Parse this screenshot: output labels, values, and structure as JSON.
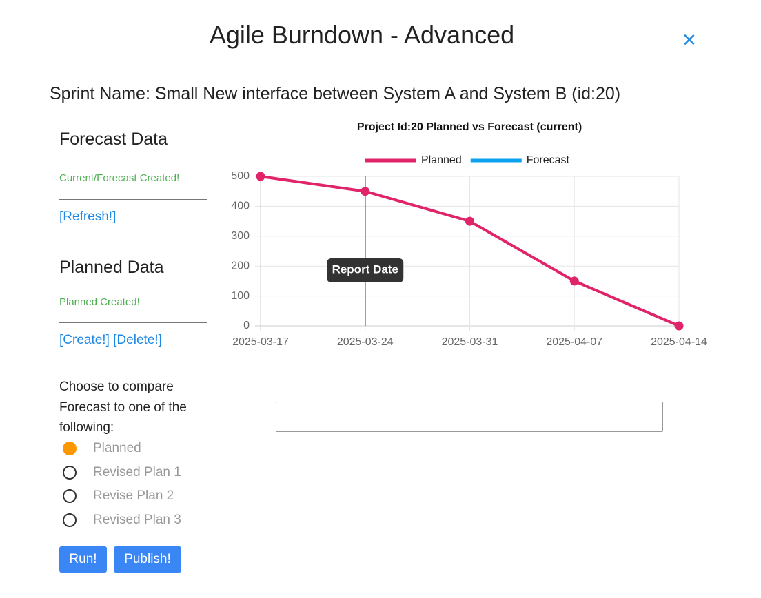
{
  "title": "Agile Burndown - Advanced",
  "close": "×",
  "sprint_name": "Sprint Name: Small New interface between System A and System B (id:20)",
  "forecast": {
    "heading": "Forecast Data",
    "status": "Current/Forecast Created!",
    "actions": [
      "[Refresh!]"
    ]
  },
  "planned": {
    "heading": "Planned Data",
    "status": "Planned Created!",
    "actions": [
      "[Create!]",
      "[Delete!]"
    ]
  },
  "compare": {
    "prompt": "Choose to compare Forecast to one of the following:",
    "options": [
      "Planned",
      "Revised Plan 1",
      "Revise Plan 2",
      "Revised Plan 3"
    ],
    "selected": "Planned"
  },
  "buttons": [
    "Run!",
    "Publish!"
  ],
  "chart_data": {
    "type": "line",
    "title": "Project Id:20 Planned vs Forecast (current)",
    "categories": [
      "2025-03-17",
      "2025-03-24",
      "2025-03-31",
      "2025-04-07",
      "2025-04-14"
    ],
    "series": [
      {
        "name": "Planned",
        "color": "#e0246a",
        "values": [
          500,
          450,
          350,
          150,
          0
        ]
      },
      {
        "name": "Forecast",
        "color": "#0aa2ee",
        "values": [
          null,
          null,
          null,
          null,
          null
        ]
      }
    ],
    "ylim": [
      0,
      500
    ],
    "yticks": [
      0,
      100,
      200,
      300,
      400,
      500
    ],
    "grid": true,
    "legend": "top",
    "annotation": {
      "label": "Report Date",
      "x": "2025-03-24",
      "color": "#e00000"
    }
  }
}
